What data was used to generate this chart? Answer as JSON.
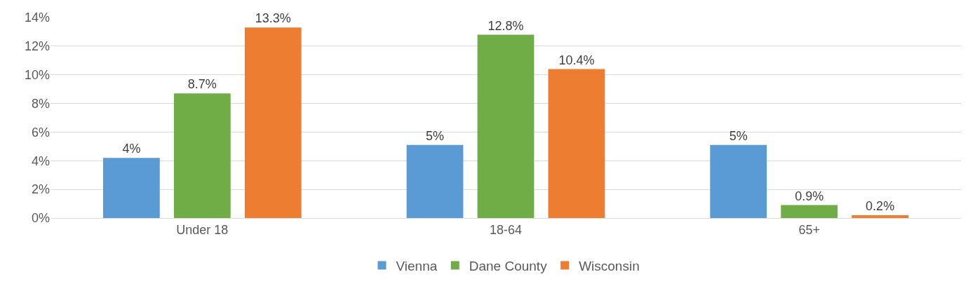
{
  "chart_data": {
    "type": "bar",
    "categories": [
      "Under 18",
      "18-64",
      "65+"
    ],
    "series": [
      {
        "name": "Vienna",
        "color": "#5b9bd5",
        "values": [
          4.2,
          5.1,
          5.1
        ],
        "value_labels": [
          "4%",
          "5%",
          "5%"
        ]
      },
      {
        "name": "Dane County",
        "color": "#70ad47",
        "values": [
          8.7,
          12.8,
          0.9
        ],
        "value_labels": [
          "8.7%",
          "12.8%",
          "0.9%"
        ]
      },
      {
        "name": "Wisconsin",
        "color": "#ed7d31",
        "values": [
          13.3,
          10.4,
          0.2
        ],
        "value_labels": [
          "13.3%",
          "10.4%",
          "0.2%"
        ]
      }
    ],
    "ylim": [
      0,
      14
    ],
    "yticks": [
      {
        "value": 0,
        "label": "0%"
      },
      {
        "value": 2,
        "label": "2%"
      },
      {
        "value": 4,
        "label": "4%"
      },
      {
        "value": 6,
        "label": "6%"
      },
      {
        "value": 8,
        "label": "8%"
      },
      {
        "value": 10,
        "label": "10%"
      },
      {
        "value": 12,
        "label": "12%"
      },
      {
        "value": 14,
        "label": "14%"
      }
    ],
    "grid": "y",
    "legend": "bottom"
  }
}
